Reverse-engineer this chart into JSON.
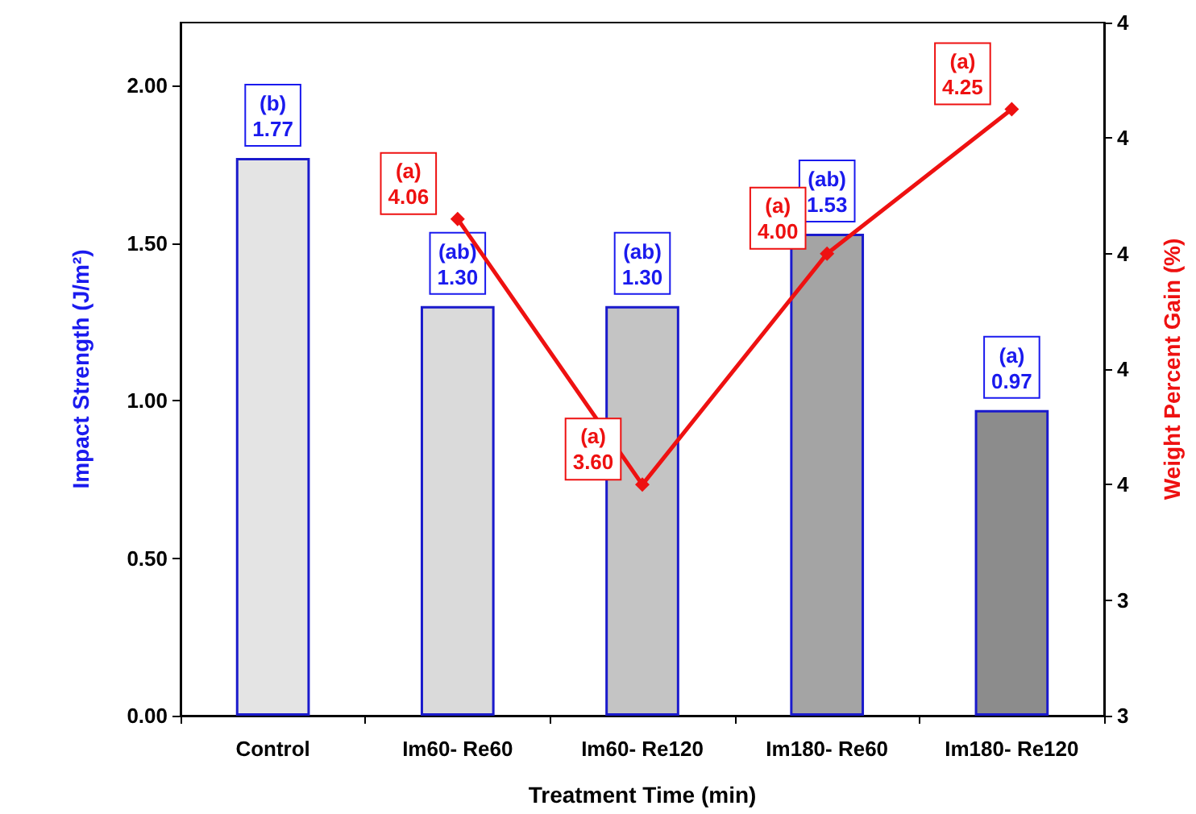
{
  "chart_data": {
    "type": "bar",
    "xlabel": "Treatment Time (min)",
    "ylabel": "Impact Strength (J/m²)",
    "y2label": "Weight Percent Gain (%)",
    "categories": [
      "Control",
      "Im60- Re60",
      "Im60- Re120",
      "Im180- Re60",
      "Im180- Re120"
    ],
    "series": [
      {
        "colors": [
          "#e4e4e4",
          "#dadada",
          "#c4c4c4",
          "#a4a4a4",
          "#8c8c8c"
        ],
        "values": [
          1.77,
          1.3,
          1.3,
          1.53,
          0.97
        ],
        "value_labels": [
          "(b)\n1.77",
          "(ab)\n1.30",
          "(ab)\n1.30",
          "(ab)\n1.53",
          "(a)\n0.97"
        ]
      },
      {
        "type": "line",
        "axis": "y2",
        "color": "#ee1111",
        "values": [
          null,
          4.06,
          3.6,
          4.0,
          4.25
        ],
        "value_labels": [
          null,
          "(a)\n4.06",
          "(a)\n3.60",
          "(a)\n4.00",
          "(a)\n4.25"
        ]
      }
    ],
    "ylim": [
      0,
      2.2
    ],
    "yticks": [
      {
        "value": 0,
        "label": "0.00"
      },
      {
        "value": 0.5,
        "label": "0.50"
      },
      {
        "value": 1,
        "label": "1.00"
      },
      {
        "value": 1.5,
        "label": "1.50"
      },
      {
        "value": 2,
        "label": "2.00"
      }
    ],
    "y2lim": [
      3.2,
      4.4
    ],
    "y2ticks": [
      {
        "value": 3.2,
        "label": "3"
      },
      {
        "value": 3.4,
        "label": "3"
      },
      {
        "value": 3.6,
        "label": "4"
      },
      {
        "value": 3.8,
        "label": "4"
      },
      {
        "value": 4.0,
        "label": "4"
      },
      {
        "value": 4.2,
        "label": "4"
      },
      {
        "value": 4.4,
        "label": "4"
      }
    ],
    "marker": "diamond",
    "line_style": "solid",
    "grid": false
  }
}
